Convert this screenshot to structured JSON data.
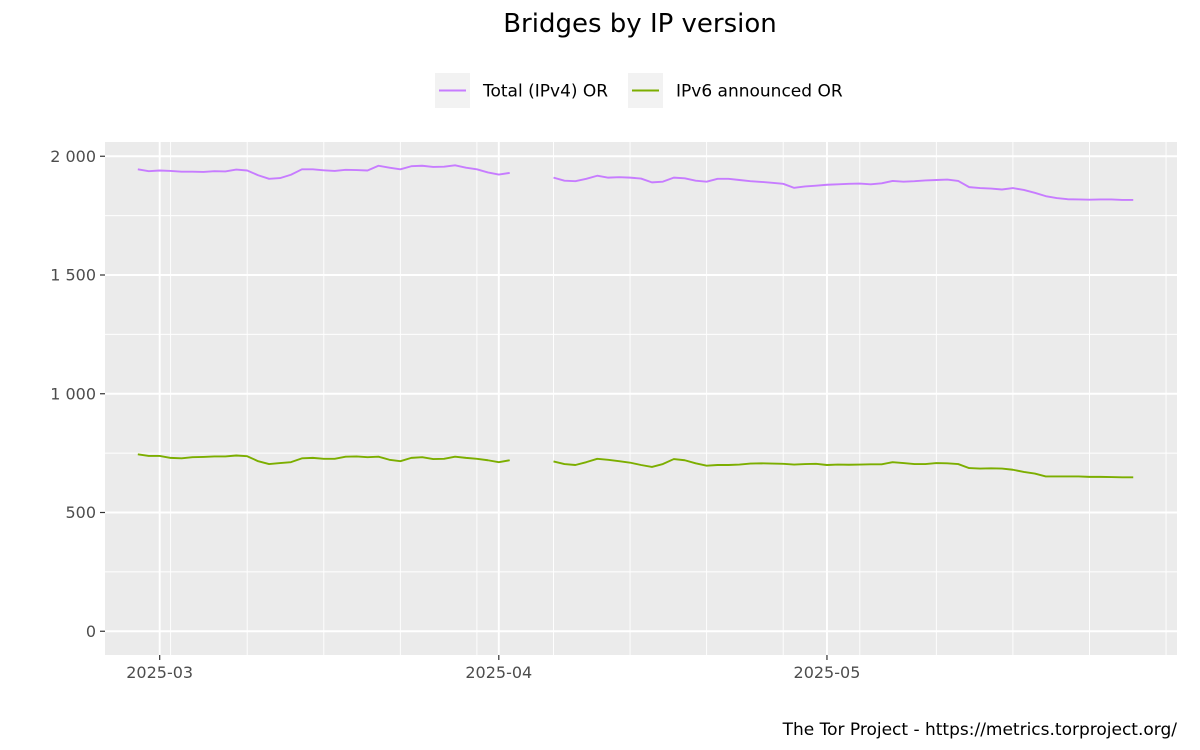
{
  "chart_data": {
    "type": "line",
    "title": "Bridges by IP version",
    "xlabel": "",
    "ylabel": "",
    "ylim": [
      -100,
      2060
    ],
    "xlim": [
      "2025-02-24",
      "2025-06-02"
    ],
    "y_ticks": [
      0,
      500,
      1000,
      1500,
      2000
    ],
    "y_tick_labels": [
      "0",
      "500",
      "1 000",
      "1 500",
      "2 000"
    ],
    "x_ticks": [
      "2025-03-01",
      "2025-04-01",
      "2025-05-01"
    ],
    "x_tick_labels": [
      "2025-03",
      "2025-04",
      "2025-05"
    ],
    "grid": true,
    "legend_position": "top",
    "series": [
      {
        "name": "Total (IPv4) OR",
        "color": "#c77cff",
        "segments": [
          {
            "x": [
              "2025-02-27",
              "2025-02-28",
              "2025-03-01",
              "2025-03-02",
              "2025-03-03",
              "2025-03-04",
              "2025-03-05",
              "2025-03-06",
              "2025-03-07",
              "2025-03-08",
              "2025-03-09",
              "2025-03-10",
              "2025-03-11",
              "2025-03-12",
              "2025-03-13",
              "2025-03-14",
              "2025-03-15",
              "2025-03-16",
              "2025-03-17",
              "2025-03-18",
              "2025-03-19",
              "2025-03-20",
              "2025-03-21",
              "2025-03-22",
              "2025-03-23",
              "2025-03-24",
              "2025-03-25",
              "2025-03-26",
              "2025-03-27",
              "2025-03-28",
              "2025-03-29",
              "2025-03-30",
              "2025-03-31",
              "2025-04-01",
              "2025-04-02"
            ],
            "y": [
              1945,
              1937,
              1940,
              1938,
              1935,
              1935,
              1934,
              1937,
              1936,
              1944,
              1940,
              1920,
              1905,
              1908,
              1922,
              1945,
              1945,
              1941,
              1938,
              1943,
              1942,
              1940,
              1960,
              1952,
              1945,
              1958,
              1960,
              1955,
              1956,
              1962,
              1952,
              1945,
              1932,
              1923,
              1930
            ]
          },
          {
            "x": [
              "2025-04-06",
              "2025-04-07",
              "2025-04-08",
              "2025-04-09",
              "2025-04-10",
              "2025-04-11",
              "2025-04-12",
              "2025-04-13",
              "2025-04-14",
              "2025-04-15",
              "2025-04-16",
              "2025-04-17",
              "2025-04-18",
              "2025-04-19",
              "2025-04-20",
              "2025-04-21",
              "2025-04-22",
              "2025-04-23",
              "2025-04-24",
              "2025-04-25",
              "2025-04-26",
              "2025-04-27",
              "2025-04-28",
              "2025-04-29",
              "2025-04-30",
              "2025-05-01",
              "2025-05-02",
              "2025-05-03",
              "2025-05-04",
              "2025-05-05",
              "2025-05-06",
              "2025-05-07",
              "2025-05-08",
              "2025-05-09",
              "2025-05-10",
              "2025-05-11",
              "2025-05-12",
              "2025-05-13",
              "2025-05-14",
              "2025-05-15",
              "2025-05-16",
              "2025-05-17",
              "2025-05-18",
              "2025-05-19",
              "2025-05-20",
              "2025-05-21",
              "2025-05-22",
              "2025-05-23",
              "2025-05-24",
              "2025-05-25",
              "2025-05-26",
              "2025-05-27",
              "2025-05-28",
              "2025-05-29"
            ],
            "y": [
              1910,
              1897,
              1895,
              1905,
              1918,
              1910,
              1912,
              1910,
              1906,
              1890,
              1893,
              1910,
              1907,
              1897,
              1893,
              1905,
              1905,
              1900,
              1895,
              1892,
              1888,
              1884,
              1867,
              1873,
              1876,
              1880,
              1882,
              1884,
              1885,
              1882,
              1886,
              1896,
              1893,
              1895,
              1898,
              1900,
              1902,
              1896,
              1870,
              1866,
              1864,
              1860,
              1866,
              1858,
              1846,
              1832,
              1824,
              1819,
              1818,
              1817,
              1818,
              1818,
              1816,
              1816
            ]
          }
        ]
      },
      {
        "name": "IPv6 announced OR",
        "color": "#7cae00",
        "segments": [
          {
            "x": [
              "2025-02-27",
              "2025-02-28",
              "2025-03-01",
              "2025-03-02",
              "2025-03-03",
              "2025-03-04",
              "2025-03-05",
              "2025-03-06",
              "2025-03-07",
              "2025-03-08",
              "2025-03-09",
              "2025-03-10",
              "2025-03-11",
              "2025-03-12",
              "2025-03-13",
              "2025-03-14",
              "2025-03-15",
              "2025-03-16",
              "2025-03-17",
              "2025-03-18",
              "2025-03-19",
              "2025-03-20",
              "2025-03-21",
              "2025-03-22",
              "2025-03-23",
              "2025-03-24",
              "2025-03-25",
              "2025-03-26",
              "2025-03-27",
              "2025-03-28",
              "2025-03-29",
              "2025-03-30",
              "2025-03-31",
              "2025-04-01",
              "2025-04-02"
            ],
            "y": [
              745,
              738,
              738,
              730,
              728,
              733,
              734,
              736,
              736,
              740,
              737,
              716,
              704,
              708,
              712,
              728,
              730,
              726,
              726,
              735,
              736,
              733,
              735,
              722,
              716,
              730,
              733,
              725,
              726,
              735,
              730,
              726,
              720,
              712,
              720
            ]
          },
          {
            "x": [
              "2025-04-06",
              "2025-04-07",
              "2025-04-08",
              "2025-04-09",
              "2025-04-10",
              "2025-04-11",
              "2025-04-12",
              "2025-04-13",
              "2025-04-14",
              "2025-04-15",
              "2025-04-16",
              "2025-04-17",
              "2025-04-18",
              "2025-04-19",
              "2025-04-20",
              "2025-04-21",
              "2025-04-22",
              "2025-04-23",
              "2025-04-24",
              "2025-04-25",
              "2025-04-26",
              "2025-04-27",
              "2025-04-28",
              "2025-04-29",
              "2025-04-30",
              "2025-05-01",
              "2025-05-02",
              "2025-05-03",
              "2025-05-04",
              "2025-05-05",
              "2025-05-06",
              "2025-05-07",
              "2025-05-08",
              "2025-05-09",
              "2025-05-10",
              "2025-05-11",
              "2025-05-12",
              "2025-05-13",
              "2025-05-14",
              "2025-05-15",
              "2025-05-16",
              "2025-05-17",
              "2025-05-18",
              "2025-05-19",
              "2025-05-20",
              "2025-05-21",
              "2025-05-22",
              "2025-05-23",
              "2025-05-24",
              "2025-05-25",
              "2025-05-26",
              "2025-05-27",
              "2025-05-28",
              "2025-05-29"
            ],
            "y": [
              715,
              704,
              700,
              712,
              726,
              722,
              716,
              710,
              700,
              692,
              704,
              725,
              720,
              707,
              697,
              700,
              700,
              702,
              706,
              707,
              706,
              705,
              702,
              704,
              705,
              700,
              702,
              701,
              702,
              703,
              703,
              712,
              708,
              704,
              704,
              708,
              707,
              704,
              687,
              685,
              686,
              685,
              680,
              671,
              664,
              652,
              652,
              652,
              652,
              650,
              650,
              649,
              648,
              648
            ]
          }
        ]
      }
    ]
  },
  "caption": "The Tor Project - https://metrics.torproject.org/"
}
